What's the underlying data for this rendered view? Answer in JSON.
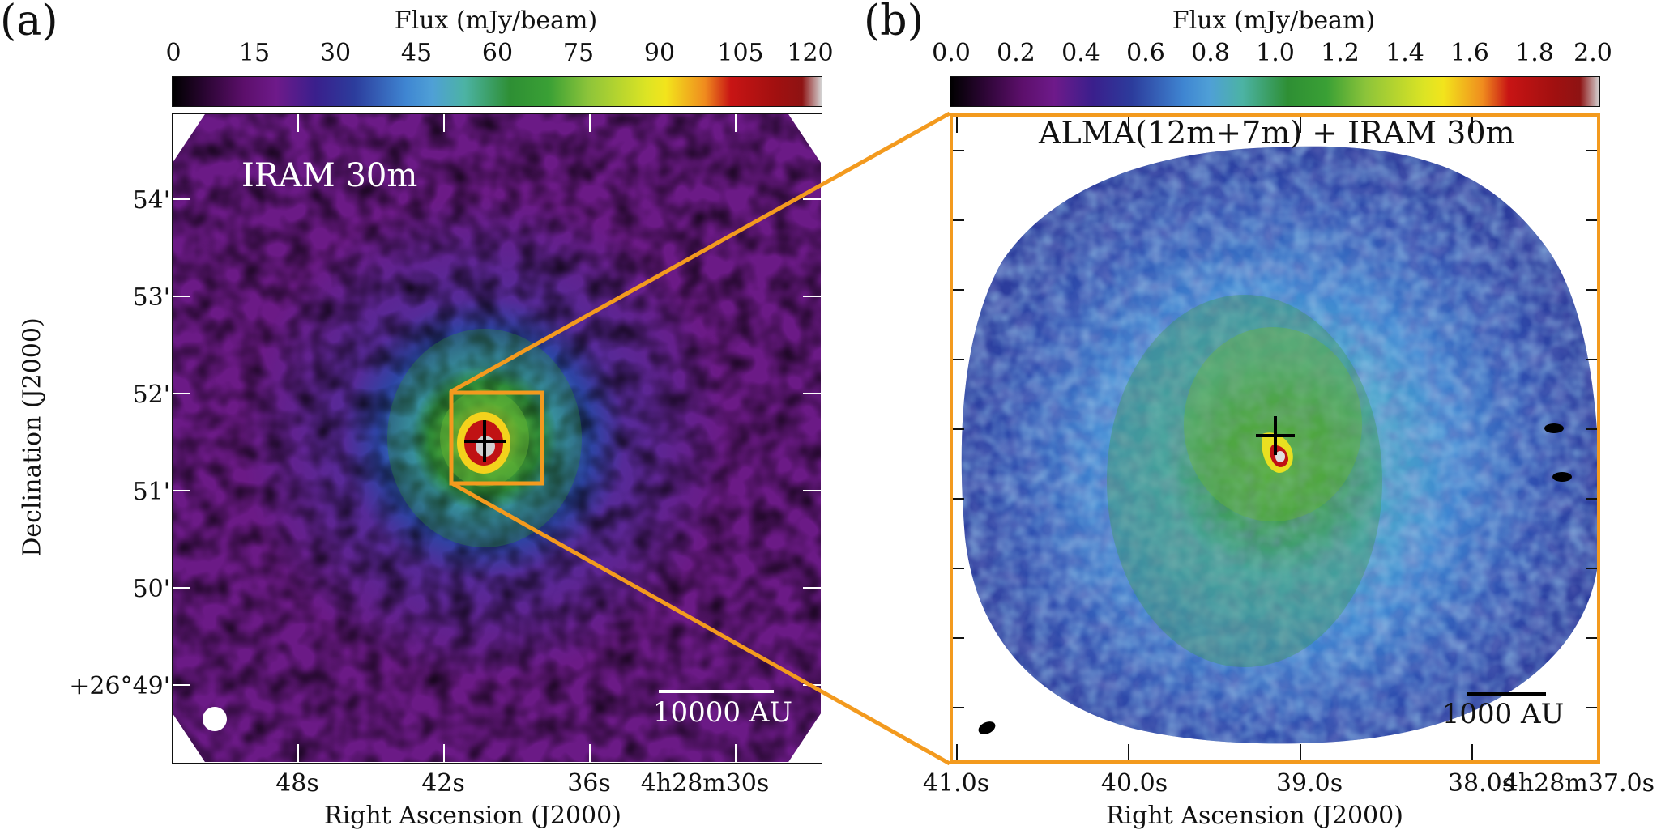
{
  "panel_a": {
    "letter": "(a)",
    "colorbar": {
      "title": "Flux (mJy/beam)",
      "ticks": [
        "0",
        "15",
        "30",
        "45",
        "60",
        "75",
        "90",
        "105",
        "120"
      ]
    },
    "label": "IRAM 30m",
    "dec_ticks": [
      "54'",
      "53'",
      "52'",
      "51'",
      "50'",
      "+26°49'"
    ],
    "ra_ticks": [
      "48s",
      "42s",
      "36s",
      "4h28m30s"
    ],
    "xlabel": "Right Ascension (J2000)",
    "ylabel": "Declination (J2000)",
    "scalebar": "10000 AU"
  },
  "panel_b": {
    "letter": "(b)",
    "colorbar": {
      "title": "Flux (mJy/beam)",
      "ticks": [
        "0.0",
        "0.2",
        "0.4",
        "0.6",
        "0.8",
        "1.0",
        "1.2",
        "1.4",
        "1.6",
        "1.8",
        "2.0"
      ]
    },
    "label": "ALMA(12m+7m) + IRAM 30m",
    "ra_ticks": [
      "41.0s",
      "40.0s",
      "39.0s",
      "38.0s",
      "4h28m37.0s"
    ],
    "xlabel": "Right Ascension (J2000)",
    "scalebar": "1000 AU"
  },
  "colors": {
    "highlight": "#f39a1e"
  }
}
